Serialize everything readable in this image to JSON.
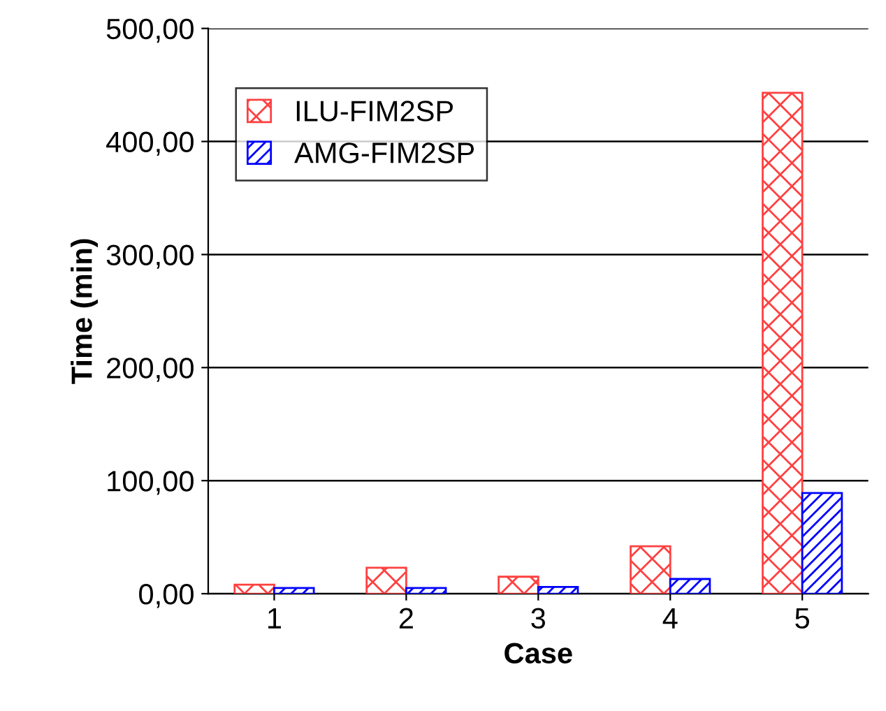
{
  "chart_data": {
    "type": "bar",
    "xlabel": "Case",
    "ylabel": "Time (min)",
    "categories": [
      "1",
      "2",
      "3",
      "4",
      "5"
    ],
    "series": [
      {
        "name": "ILU-FIM2SP",
        "color": "#ff4040",
        "values": [
          8,
          23,
          15,
          42,
          443
        ]
      },
      {
        "name": "AMG-FIM2SP",
        "color": "#0000ff",
        "values": [
          5,
          5,
          6,
          13,
          89
        ]
      }
    ],
    "ylim": [
      0,
      500
    ],
    "yticks": [
      {
        "value": 0,
        "label": "0,00"
      },
      {
        "value": 100,
        "label": "100,00"
      },
      {
        "value": 200,
        "label": "200,00"
      },
      {
        "value": 300,
        "label": "300,00"
      },
      {
        "value": 400,
        "label": "400,00"
      },
      {
        "value": 500,
        "label": "500,00"
      }
    ],
    "grid": "y",
    "legend": "top left"
  }
}
